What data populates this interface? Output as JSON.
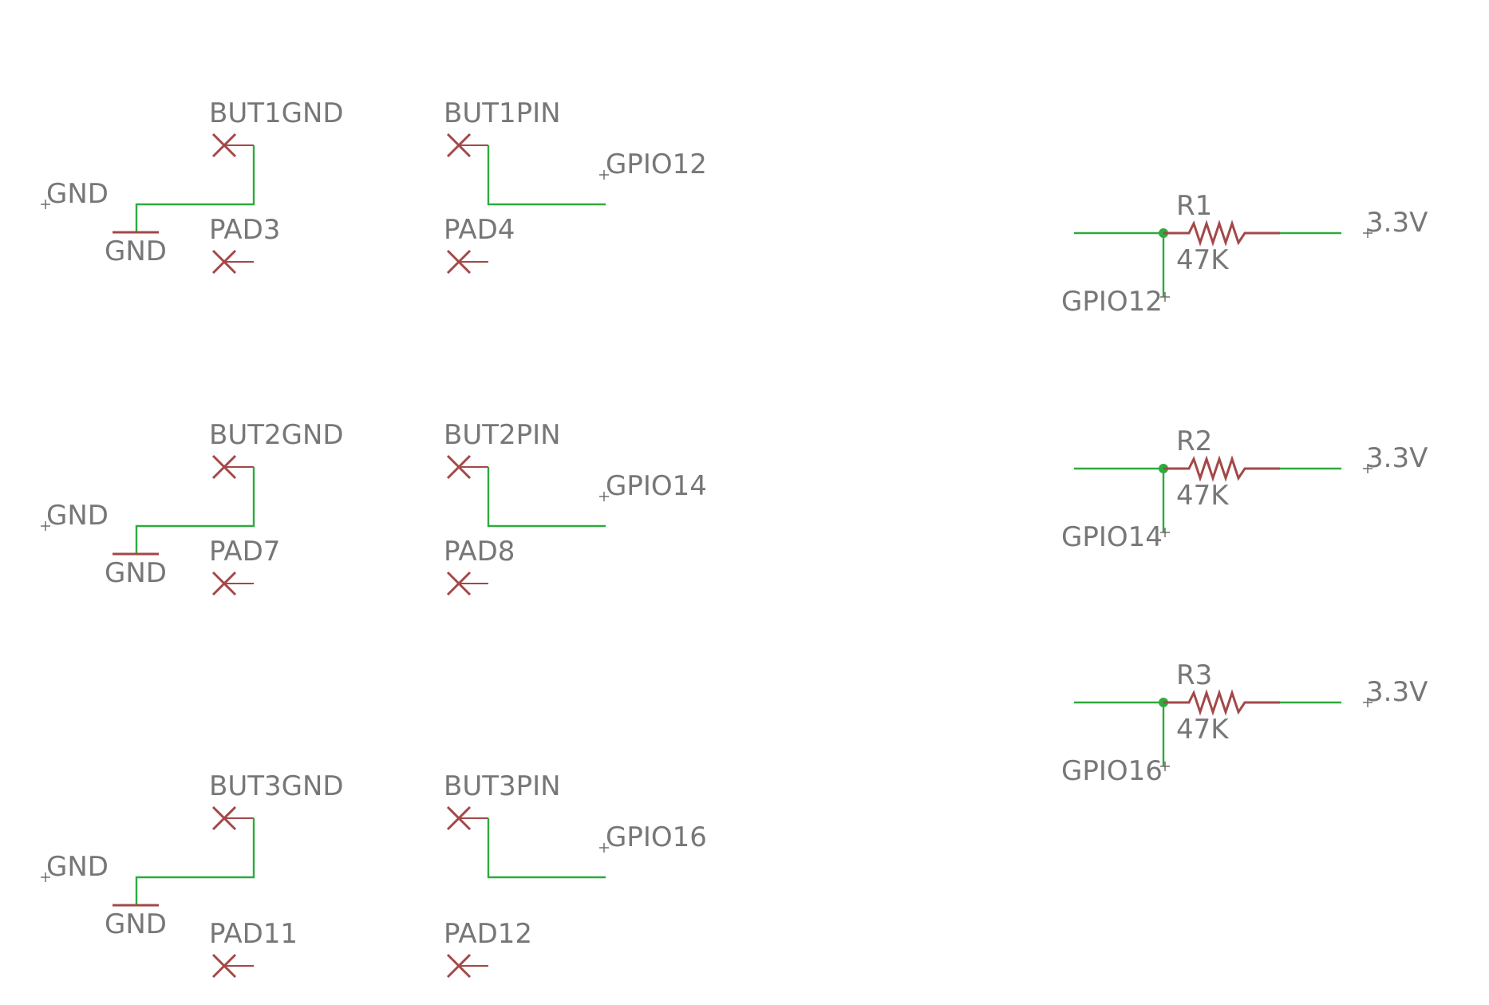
{
  "colors": {
    "wire": "#2eaa3e",
    "symbol": "#a34848",
    "text": "#777777",
    "junction": "#2eaa3e"
  },
  "buttons": [
    {
      "gnd_pad": "BUT1GND",
      "pin_pad": "BUT1PIN",
      "spare_gnd_pad": "PAD3",
      "spare_pin_pad": "PAD4",
      "gnd_net": "GND",
      "gnd_symbol": "GND",
      "signal_net": "GPIO12"
    },
    {
      "gnd_pad": "BUT2GND",
      "pin_pad": "BUT2PIN",
      "spare_gnd_pad": "PAD7",
      "spare_pin_pad": "PAD8",
      "gnd_net": "GND",
      "gnd_symbol": "GND",
      "signal_net": "GPIO14"
    },
    {
      "gnd_pad": "BUT3GND",
      "pin_pad": "BUT3PIN",
      "spare_gnd_pad": "PAD11",
      "spare_pin_pad": "PAD12",
      "gnd_net": "GND",
      "gnd_symbol": "GND",
      "signal_net": "GPIO16"
    }
  ],
  "resistors": [
    {
      "name": "R1",
      "value": "47K",
      "net": "GPIO12",
      "supply": "3.3V"
    },
    {
      "name": "R2",
      "value": "47K",
      "net": "GPIO14",
      "supply": "3.3V"
    },
    {
      "name": "R3",
      "value": "47K",
      "net": "GPIO16",
      "supply": "3.3V"
    }
  ]
}
